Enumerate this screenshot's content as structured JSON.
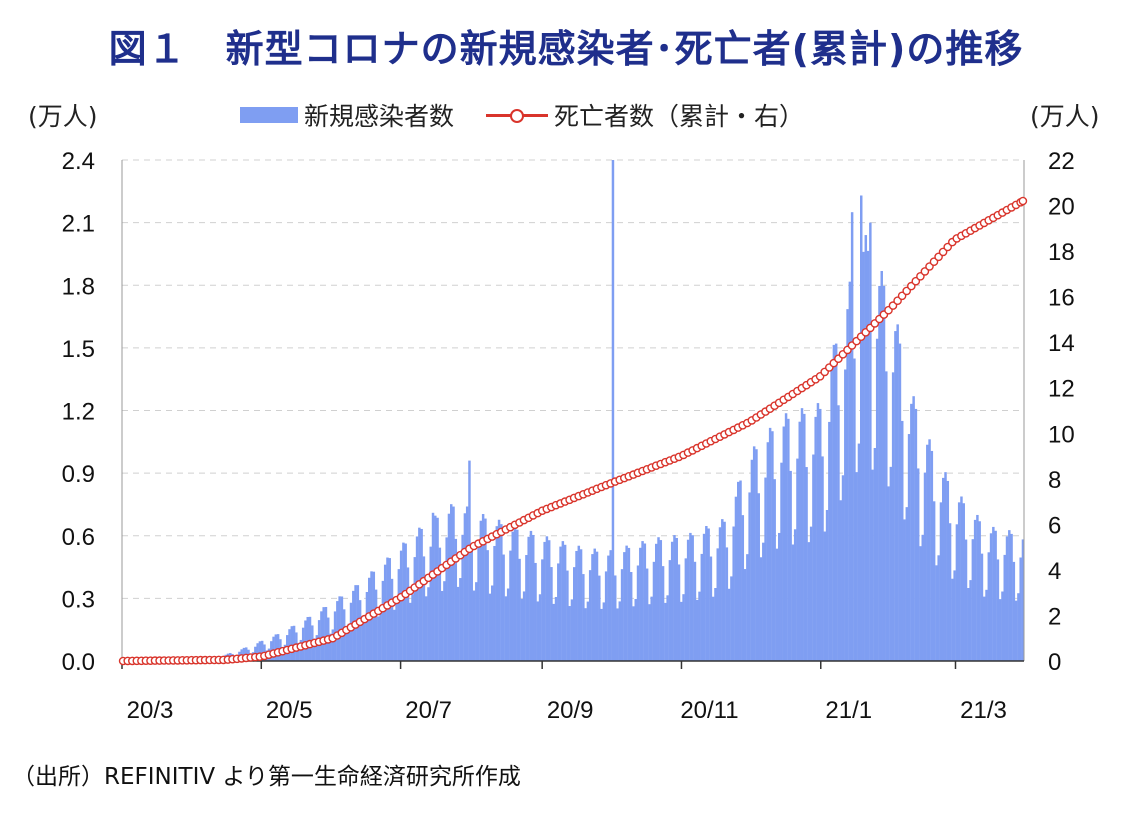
{
  "title": "図１　新型コロナの新規感染者･死亡者(累計)の推移",
  "source": "（出所）REFINITIV より第一生命経済研究所作成",
  "chart_data": {
    "type": "bar+line",
    "left_unit": "(万人)",
    "right_unit": "(万人)",
    "legend": [
      "新規感染者数",
      "死亡者数（累計・右）"
    ],
    "x_ticks": [
      "20/3",
      "20/5",
      "20/7",
      "20/9",
      "20/11",
      "21/1",
      "21/3"
    ],
    "left_axis": {
      "min": 0,
      "max": 2.4,
      "ticks": [
        "0.0",
        "0.3",
        "0.6",
        "0.9",
        "1.2",
        "1.5",
        "1.8",
        "2.1",
        "2.4"
      ]
    },
    "right_axis": {
      "min": 0,
      "max": 22,
      "ticks": [
        "0",
        "2",
        "4",
        "6",
        "8",
        "10",
        "12",
        "14",
        "16",
        "18",
        "20",
        "22"
      ]
    },
    "colors": {
      "bars": "#7f9ef2",
      "line": "#d9342b",
      "grid": "#d0d0d0"
    },
    "series": [
      {
        "name": "新規感染者数",
        "type": "bar",
        "axis": "left",
        "unit_note": "weekly-resolution estimates (daily bars)",
        "anchors": [
          [
            "2020-03-01",
            0.0
          ],
          [
            "2020-03-20",
            0.0
          ],
          [
            "2020-04-10",
            0.01
          ],
          [
            "2020-04-25",
            0.06
          ],
          [
            "2020-05-10",
            0.12
          ],
          [
            "2020-05-25",
            0.2
          ],
          [
            "2020-06-10",
            0.3
          ],
          [
            "2020-06-25",
            0.42
          ],
          [
            "2020-07-10",
            0.55
          ],
          [
            "2020-07-25",
            0.65
          ],
          [
            "2020-08-05",
            0.6
          ],
          [
            "2020-08-20",
            0.55
          ],
          [
            "2020-09-05",
            0.5
          ],
          [
            "2020-09-20",
            0.46
          ],
          [
            "2020-10-01",
            0.45
          ],
          [
            "2020-10-20",
            0.5
          ],
          [
            "2020-11-05",
            0.52
          ],
          [
            "2020-11-20",
            0.58
          ],
          [
            "2020-12-01",
            0.85
          ],
          [
            "2020-12-15",
            1.0
          ],
          [
            "2021-01-01",
            1.05
          ],
          [
            "2021-01-10",
            1.4
          ],
          [
            "2021-01-20",
            1.75
          ],
          [
            "2021-02-01",
            1.5
          ],
          [
            "2021-02-10",
            1.1
          ],
          [
            "2021-02-20",
            0.85
          ],
          [
            "2021-03-01",
            0.7
          ],
          [
            "2021-03-15",
            0.55
          ],
          [
            "2021-03-31",
            0.52
          ]
        ],
        "spikes": [
          [
            "2020-10-02",
            2.4
          ],
          [
            "2021-01-19",
            2.23
          ],
          [
            "2021-01-15",
            2.15
          ],
          [
            "2021-01-23",
            2.1
          ],
          [
            "2020-07-31",
            0.96
          ],
          [
            "2020-07-15",
            0.71
          ]
        ]
      },
      {
        "name": "死亡者数（累計・右）",
        "type": "line",
        "axis": "right",
        "anchors": [
          [
            "2020-03-01",
            0.0
          ],
          [
            "2020-04-15",
            0.05
          ],
          [
            "2020-05-01",
            0.2
          ],
          [
            "2020-06-01",
            1.0
          ],
          [
            "2020-07-01",
            2.8
          ],
          [
            "2020-08-01",
            5.0
          ],
          [
            "2020-09-01",
            6.6
          ],
          [
            "2020-10-01",
            7.8
          ],
          [
            "2020-11-01",
            9.0
          ],
          [
            "2020-12-01",
            10.5
          ],
          [
            "2021-01-01",
            12.5
          ],
          [
            "2021-02-01",
            15.5
          ],
          [
            "2021-03-01",
            18.5
          ],
          [
            "2021-03-31",
            20.2
          ]
        ]
      }
    ]
  }
}
